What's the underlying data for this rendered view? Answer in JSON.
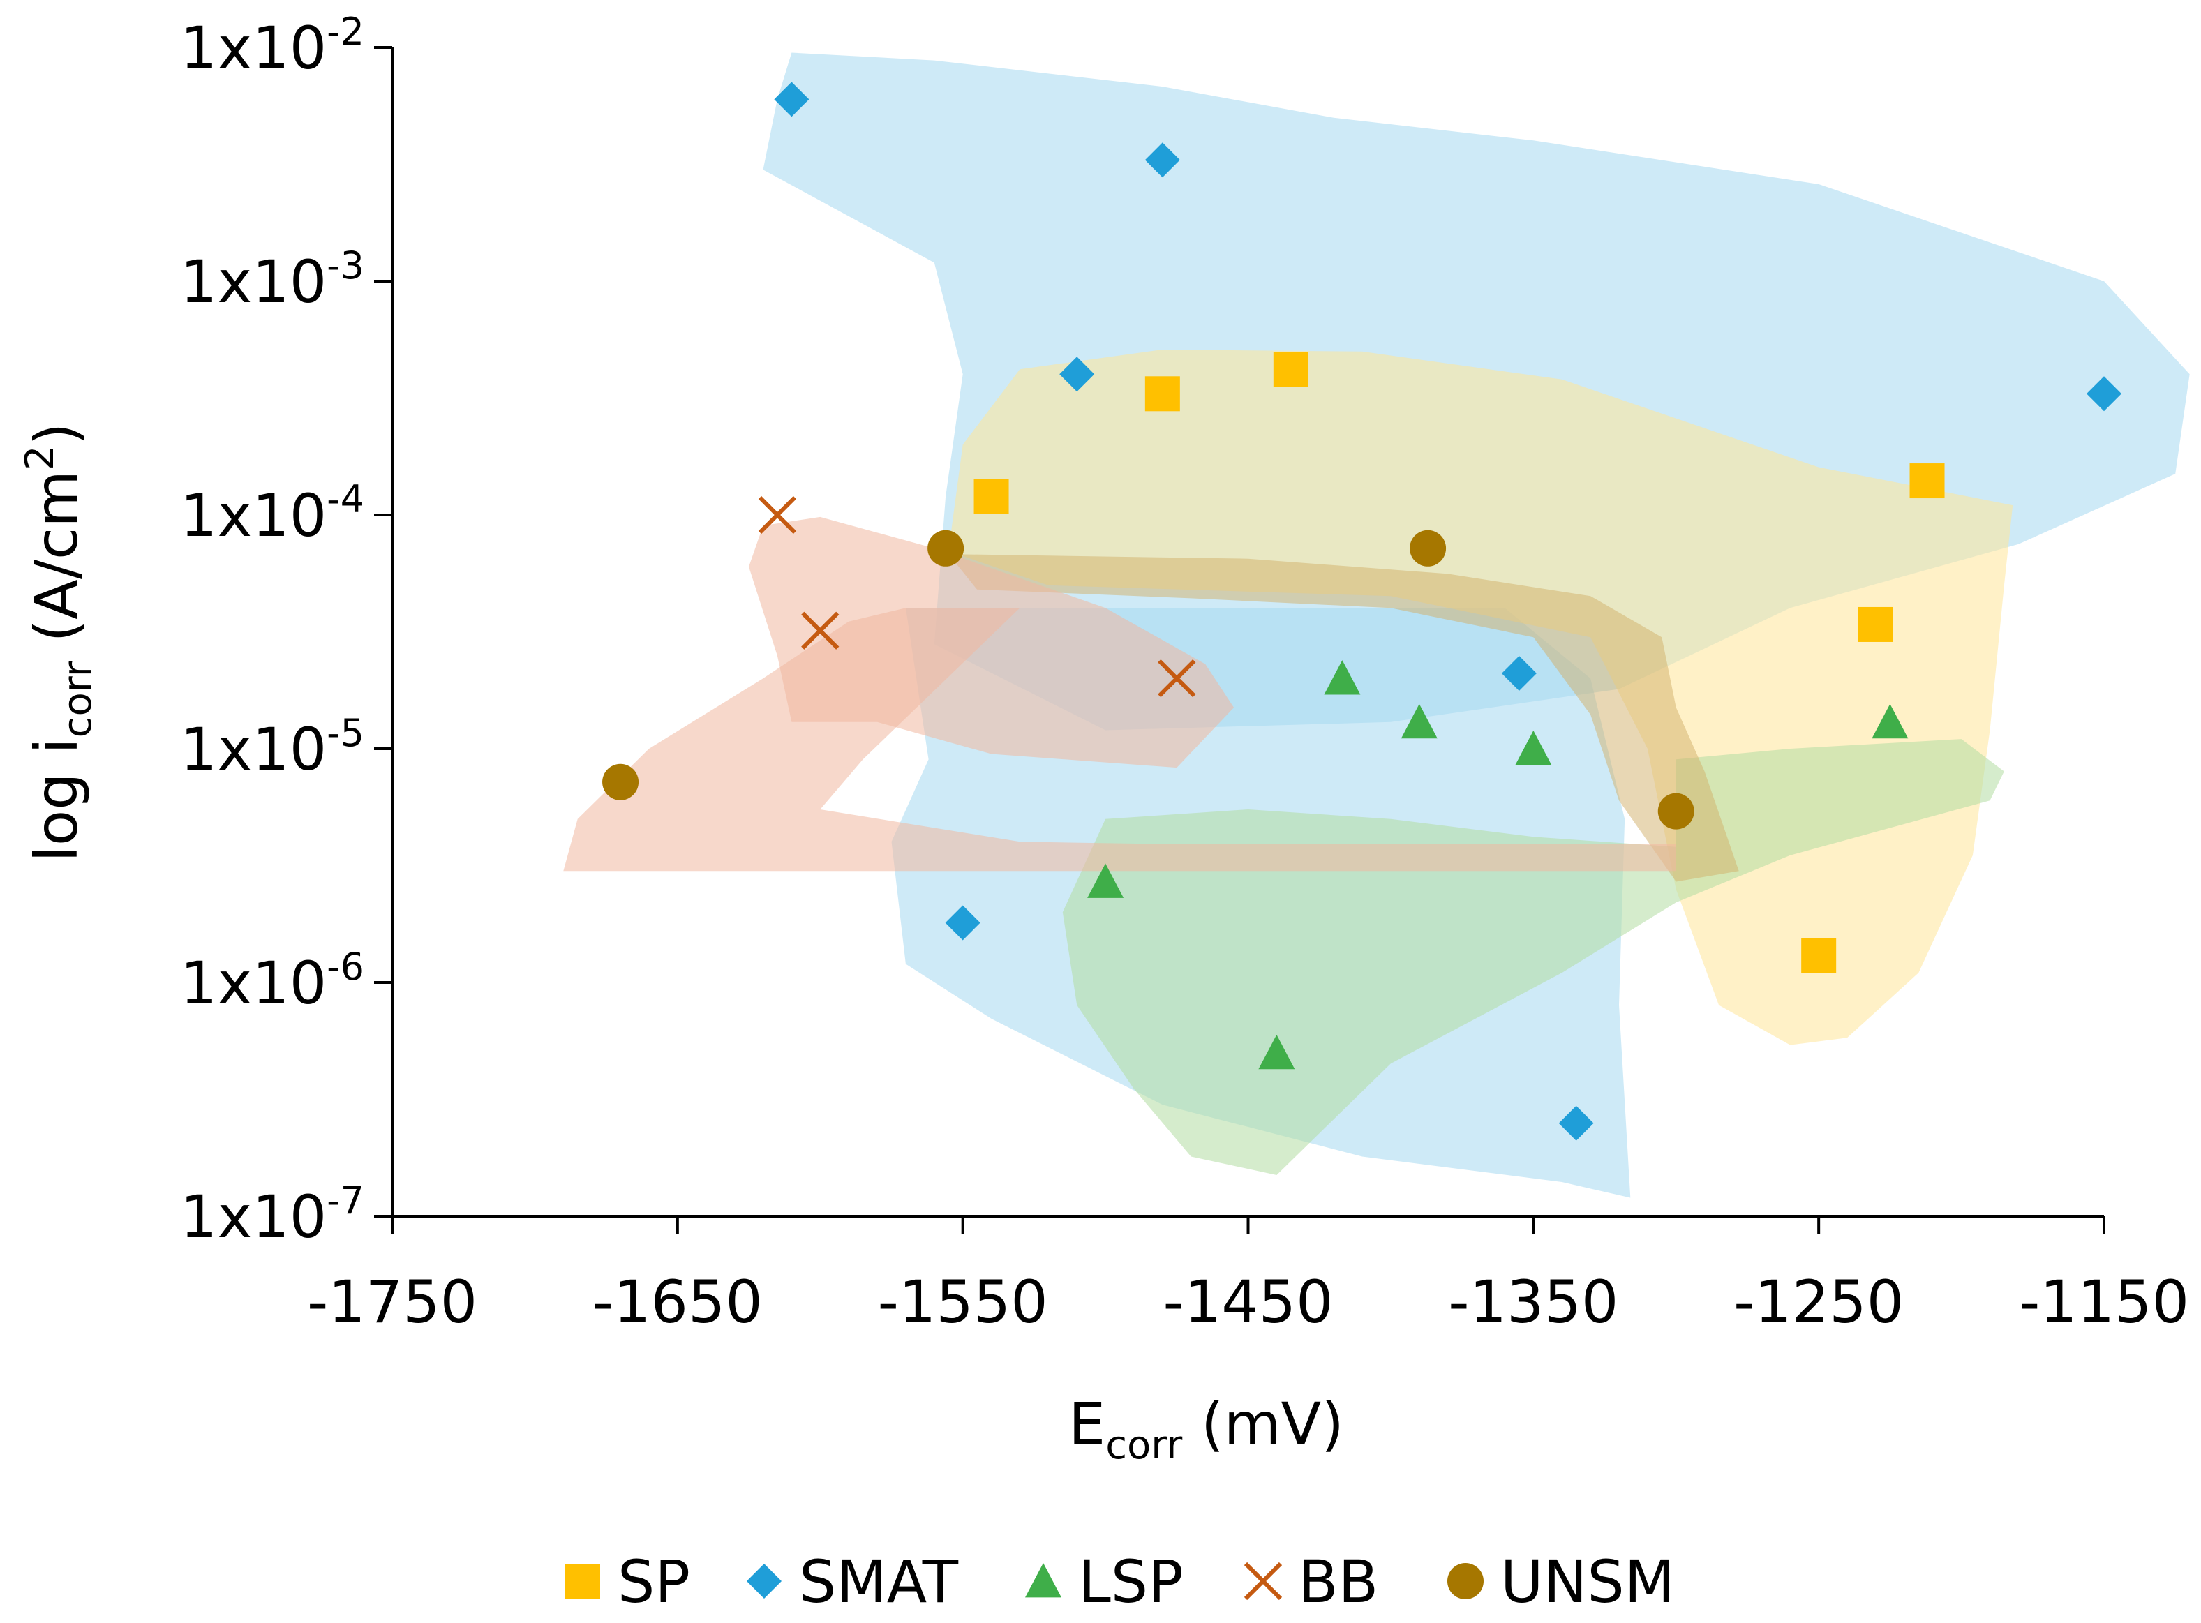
{
  "chart_data": {
    "type": "scatter",
    "xlabel_main": "E",
    "xlabel_sub": "corr",
    "xlabel_tail": " (mV)",
    "ylabel_main": "log i",
    "ylabel_sub": "corr",
    "ylabel_tail": " (A/cm",
    "ylabel_sup": "2",
    "ylabel_end": ")",
    "xlim": [
      -1750,
      -1150
    ],
    "ylim_exp": [
      -7,
      -2
    ],
    "y_scale": "log",
    "x_ticks": [
      {
        "value": -1750,
        "label": "-1750"
      },
      {
        "value": -1650,
        "label": "-1650"
      },
      {
        "value": -1550,
        "label": "-1550"
      },
      {
        "value": -1450,
        "label": "-1450"
      },
      {
        "value": -1350,
        "label": "-1350"
      },
      {
        "value": -1250,
        "label": "-1250"
      },
      {
        "value": -1150,
        "label": "-1150"
      }
    ],
    "y_ticks": [
      {
        "exp": -2,
        "base": "1x10",
        "sup": "-2"
      },
      {
        "exp": -3,
        "base": "1x10",
        "sup": "-3"
      },
      {
        "exp": -4,
        "base": "1x10",
        "sup": "-4"
      },
      {
        "exp": -5,
        "base": "1x10",
        "sup": "-5"
      },
      {
        "exp": -6,
        "base": "1x10",
        "sup": "-6"
      },
      {
        "exp": -7,
        "base": "1x10",
        "sup": "-7"
      }
    ],
    "grid": false,
    "legend_position": "bottom",
    "series": [
      {
        "name": "SP",
        "marker": "square",
        "color": "#FFC000",
        "points": [
          {
            "x": -1540,
            "y": 0.00012
          },
          {
            "x": -1480,
            "y": 0.00033
          },
          {
            "x": -1435,
            "y": 0.00042
          },
          {
            "x": -1230,
            "y": 3.4e-05
          },
          {
            "x": -1212,
            "y": 0.00014
          },
          {
            "x": -1250,
            "y": 1.3e-06
          }
        ]
      },
      {
        "name": "SMAT",
        "marker": "diamond",
        "color": "#1F9ED8",
        "points": [
          {
            "x": -1610,
            "y": 0.006
          },
          {
            "x": -1480,
            "y": 0.0033
          },
          {
            "x": -1510,
            "y": 0.0004
          },
          {
            "x": -1150,
            "y": 0.00033
          },
          {
            "x": -1355,
            "y": 2.1e-05
          },
          {
            "x": -1550,
            "y": 1.8e-06
          },
          {
            "x": -1335,
            "y": 2.5e-07
          }
        ]
      },
      {
        "name": "LSP",
        "marker": "triangle",
        "color": "#3FAE49",
        "points": [
          {
            "x": -1417,
            "y": 2e-05
          },
          {
            "x": -1390,
            "y": 1.3e-05
          },
          {
            "x": -1350,
            "y": 1e-05
          },
          {
            "x": -1225,
            "y": 1.3e-05
          },
          {
            "x": -1500,
            "y": 2.7e-06
          },
          {
            "x": -1440,
            "y": 5e-07
          }
        ]
      },
      {
        "name": "BB",
        "marker": "x",
        "color": "#C55A11",
        "points": [
          {
            "x": -1615,
            "y": 0.0001
          },
          {
            "x": -1600,
            "y": 3.2e-05
          },
          {
            "x": -1475,
            "y": 2e-05
          }
        ]
      },
      {
        "name": "UNSM",
        "marker": "circle",
        "color": "#A67700",
        "points": [
          {
            "x": -1670,
            "y": 7.2e-06
          },
          {
            "x": -1556,
            "y": 7.2e-05
          },
          {
            "x": -1387,
            "y": 7.2e-05
          },
          {
            "x": -1300,
            "y": 5.4e-06
          }
        ]
      }
    ],
    "regions": [
      {
        "series": "SMAT",
        "color": "#A6D8F0",
        "opacity": 0.55
      },
      {
        "series": "SP",
        "color": "#FFE699",
        "opacity": 0.55
      },
      {
        "series": "LSP",
        "color": "#B3DCA3",
        "opacity": 0.55
      },
      {
        "series": "UNSM",
        "color": "#D2B06A",
        "opacity": 0.5
      },
      {
        "series": "BB",
        "color": "#F0B8A0",
        "opacity": 0.55
      }
    ]
  }
}
